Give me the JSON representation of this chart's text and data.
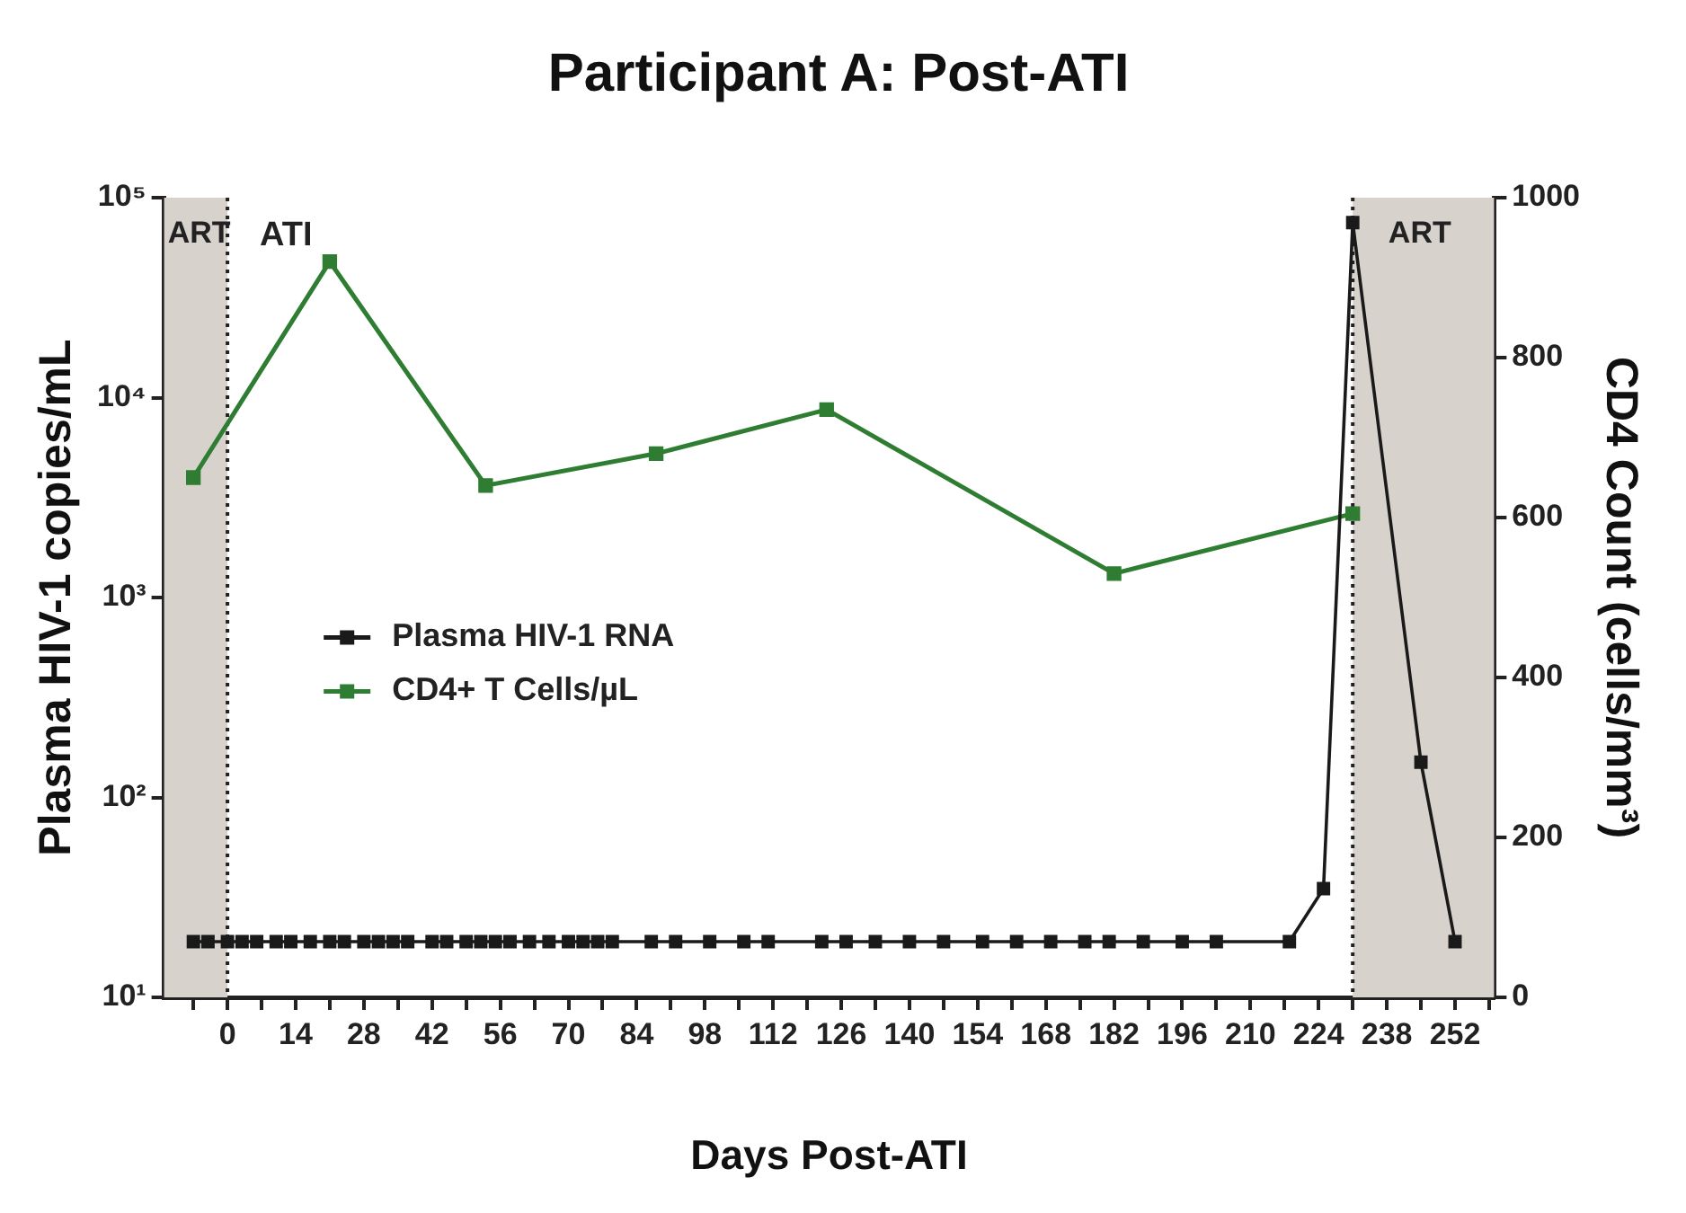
{
  "chart_data": {
    "type": "line",
    "title": "Participant A: Post-ATI",
    "xlabel": "Days Post-ATI",
    "ylabel": "Plasma HIV-1 copies/mL",
    "y2label": "CD4 Count (cells/mm³)",
    "series": [
      {
        "name": "Plasma HIV-1 RNA",
        "color": "#1a1a1a",
        "x": [
          -7,
          -4,
          0,
          3,
          6,
          10,
          13,
          17,
          21,
          24,
          28,
          31,
          34,
          37,
          42,
          45,
          49,
          52,
          55,
          58,
          62,
          66,
          70,
          73,
          76,
          79,
          87,
          92,
          99,
          106,
          111,
          122,
          127,
          133,
          140,
          147,
          155,
          162,
          169,
          176,
          181,
          188,
          196,
          203,
          218,
          225,
          231,
          245,
          252
        ],
        "values": [
          19,
          19,
          19,
          19,
          19,
          19,
          19,
          19,
          19,
          19,
          19,
          19,
          19,
          19,
          19,
          19,
          19,
          19,
          19,
          19,
          19,
          19,
          19,
          19,
          19,
          19,
          19,
          19,
          19,
          19,
          19,
          19,
          19,
          19,
          19,
          19,
          19,
          19,
          19,
          19,
          19,
          19,
          19,
          19,
          19,
          35,
          75000,
          150,
          19
        ]
      },
      {
        "name": "CD4+ T Cells/µL",
        "color": "#2e7d32",
        "axis": "y2",
        "x": [
          -7,
          21,
          53,
          88,
          123,
          182,
          231
        ],
        "values": [
          650,
          920,
          640,
          680,
          735,
          530,
          605
        ]
      }
    ],
    "xlim": [
      -13,
      260
    ],
    "xticks": [
      {
        "value": -7,
        "label": null
      },
      0,
      {
        "value": 7,
        "label": null
      },
      14,
      {
        "value": 21,
        "label": null
      },
      28,
      {
        "value": 35,
        "label": null
      },
      42,
      {
        "value": 49,
        "label": null
      },
      56,
      {
        "value": 63,
        "label": null
      },
      70,
      {
        "value": 77,
        "label": null
      },
      84,
      {
        "value": 91,
        "label": null
      },
      98,
      {
        "value": 105,
        "label": null
      },
      112,
      {
        "value": 119,
        "label": null
      },
      126,
      {
        "value": 133,
        "label": null
      },
      140,
      {
        "value": 147,
        "label": null
      },
      154,
      {
        "value": 161,
        "label": null
      },
      168,
      {
        "value": 175,
        "label": null
      },
      182,
      {
        "value": 189,
        "label": null
      },
      196,
      {
        "value": 203,
        "label": null
      },
      210,
      {
        "value": 217,
        "label": null
      },
      224,
      {
        "value": 231,
        "label": null
      },
      238,
      {
        "value": 245,
        "label": null
      },
      252,
      {
        "value": 259,
        "label": null
      }
    ],
    "ylim": [
      10,
      100000
    ],
    "log": true,
    "yticks": [
      {
        "value": 10,
        "label": "10¹"
      },
      {
        "value": 100,
        "label": "10²"
      },
      {
        "value": 1000,
        "label": "10³"
      },
      {
        "value": 10000,
        "label": "10⁴"
      },
      {
        "value": 100000,
        "label": "10⁵"
      }
    ],
    "y2lim": [
      0,
      1000
    ],
    "y2ticks": [
      0,
      200,
      400,
      600,
      800,
      1000
    ],
    "bands": [
      {
        "axis": "x",
        "from": -13,
        "to": 0,
        "label": "ART",
        "color": "#d8d2cd"
      },
      {
        "axis": "x",
        "from": 231,
        "to": 260,
        "label": "ART",
        "color": "#d8d2cd"
      }
    ],
    "ref_lines": [
      {
        "axis": "x",
        "value": 0,
        "line_style": "dotted"
      },
      {
        "axis": "x",
        "value": 231,
        "line_style": "dotted"
      }
    ],
    "annotations": [
      "ATI"
    ],
    "marker": "square",
    "line_style": "solid",
    "legend": "left"
  }
}
